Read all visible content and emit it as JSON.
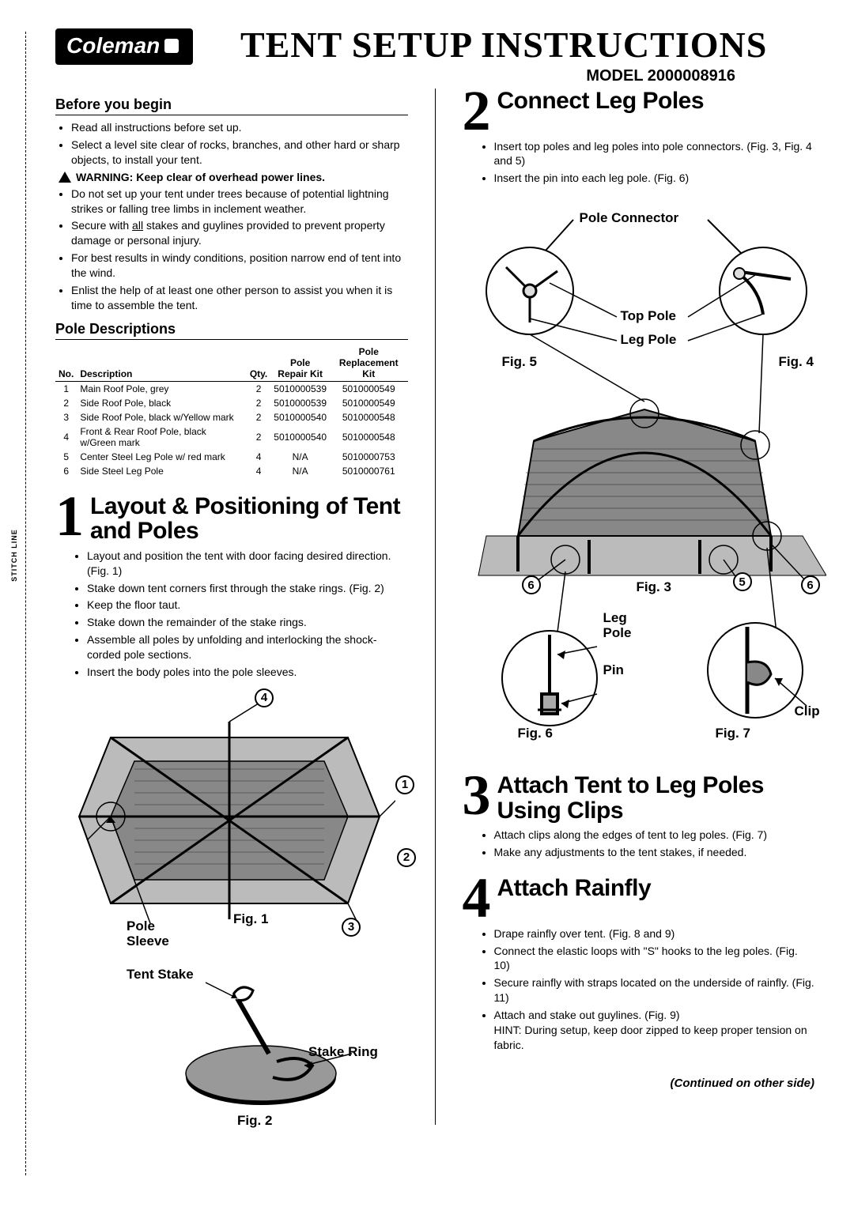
{
  "stitch": "STITCH LINE",
  "logo_text": "Coleman",
  "title": "TENT SETUP INSTRUCTIONS",
  "model_label": "MODEL 2000008916",
  "before": {
    "heading": "Before you begin",
    "items_a": [
      "Read all instructions before set up.",
      "Select a level site clear of rocks, branches, and other hard or sharp objects, to install your tent."
    ],
    "warning": "WARNING: Keep clear of overhead power lines.",
    "items_b": [
      "Do not set up your tent under trees because of potential lightning strikes or falling tree limbs in inclement weather.",
      "Secure with all stakes and guylines provided to prevent property damage or personal injury.",
      "For best results in windy conditions, position narrow end of tent into the wind.",
      "Enlist the help of at least one other person to assist you when it is time to assemble the tent."
    ],
    "secure_prefix": "Secure with ",
    "secure_underlined": "all",
    "secure_suffix": " stakes and guylines provided to prevent property damage or personal injury."
  },
  "poles": {
    "heading": "Pole Descriptions",
    "columns": [
      "No.",
      "Description",
      "Qty.",
      "Pole Repair Kit",
      "Pole Replacement Kit"
    ],
    "col_no": "No.",
    "col_desc": "Description",
    "col_qty": "Qty.",
    "col_repair1": "Pole",
    "col_repair2": "Repair Kit",
    "col_repl1": "Pole",
    "col_repl2": "Replacement Kit",
    "rows": [
      {
        "no": "1",
        "desc": "Main Roof Pole, grey",
        "qty": "2",
        "repair": "5010000539",
        "repl": "5010000549"
      },
      {
        "no": "2",
        "desc": "Side Roof Pole, black",
        "qty": "2",
        "repair": "5010000539",
        "repl": "5010000549"
      },
      {
        "no": "3",
        "desc": "Side Roof Pole, black w/Yellow mark",
        "qty": "2",
        "repair": "5010000540",
        "repl": "5010000548"
      },
      {
        "no": "4",
        "desc": "Front & Rear Roof Pole, black w/Green mark",
        "qty": "2",
        "repair": "5010000540",
        "repl": "5010000548"
      },
      {
        "no": "5",
        "desc": "Center Steel Leg Pole w/ red mark",
        "qty": "4",
        "repair": "N/A",
        "repl": "5010000753"
      },
      {
        "no": "6",
        "desc": "Side Steel Leg Pole",
        "qty": "4",
        "repair": "N/A",
        "repl": "5010000761"
      }
    ]
  },
  "step1": {
    "num": "1",
    "title": "Layout & Positioning of Tent and Poles",
    "items": [
      "Layout and position the tent with door facing desired direction. (Fig. 1)",
      "Stake down tent corners first through the stake rings. (Fig. 2)",
      "Keep the floor taut.",
      "Stake down the remainder of the stake rings.",
      "Assemble all poles by unfolding and interlocking the shock-corded pole sections.",
      "Insert the body poles into the pole sleeves."
    ],
    "labels": {
      "fig1": "Fig. 1",
      "fig2": "Fig. 2",
      "pole_sleeve": "Pole Sleeve",
      "tent_stake": "Tent Stake",
      "stake_ring": "Stake Ring"
    },
    "circled": {
      "c1": "1",
      "c2": "2",
      "c3": "3",
      "c4": "4"
    }
  },
  "step2": {
    "num": "2",
    "title": "Connect Leg Poles",
    "items": [
      "Insert top poles and leg poles into pole connectors. (Fig. 3, Fig. 4 and 5)",
      "Insert the pin into each leg pole. (Fig. 6)"
    ],
    "labels": {
      "pole_connector": "Pole Connector",
      "top_pole": "Top Pole",
      "leg_pole": "Leg Pole",
      "fig3": "Fig. 3",
      "fig4": "Fig. 4",
      "fig5": "Fig. 5",
      "fig6": "Fig. 6",
      "fig7": "Fig. 7",
      "leg_pole2": "Leg Pole",
      "pin": "Pin",
      "clip": "Clip"
    },
    "circled": {
      "c5": "5",
      "c6a": "6",
      "c6b": "6"
    }
  },
  "step3": {
    "num": "3",
    "title": "Attach Tent to Leg Poles Using Clips",
    "items": [
      "Attach clips along the edges of tent to leg poles. (Fig. 7)",
      "Make any adjustments to the tent stakes, if needed."
    ]
  },
  "step4": {
    "num": "4",
    "title": "Attach Rainfly",
    "items": [
      "Drape rainfly over tent. (Fig. 8 and 9)",
      "Connect the elastic loops with \"S\" hooks to the leg poles. (Fig. 10)",
      "Secure rainfly with straps located on the underside of rainfly. (Fig. 11)",
      "Attach and stake out guylines. (Fig. 9) HINT: During setup, keep door zipped to keep proper tension on fabric."
    ],
    "item4_main": "Attach and stake out guylines. (Fig. 9)",
    "item4_hint": "HINT: During setup, keep door zipped to keep proper tension on fabric."
  },
  "continued": "(Continued on other side)"
}
